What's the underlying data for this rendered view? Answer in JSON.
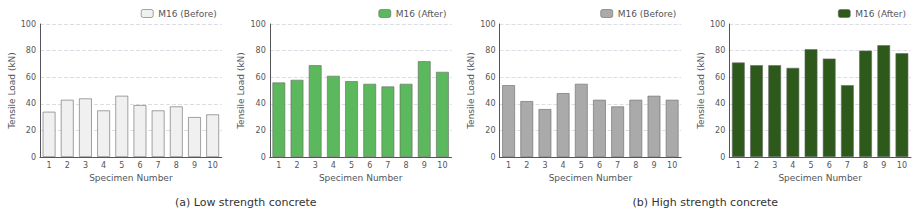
{
  "chart_data": [
    {
      "type": "bar",
      "subtitle": "(a) Low strength concrete",
      "categories": [
        "1",
        "2",
        "3",
        "4",
        "5",
        "6",
        "7",
        "8",
        "9",
        "10"
      ],
      "series": [
        {
          "name": "M16 (Before)",
          "color": "#f0f0f0",
          "values": [
            34,
            43,
            44,
            35,
            46,
            39,
            35,
            38,
            30,
            32
          ]
        }
      ],
      "xlabel": "Specimen Number",
      "ylabel": "Tensile Load (kN)",
      "ylim": [
        0,
        100
      ],
      "yticks": [
        0,
        20,
        40,
        60,
        80,
        100
      ],
      "grid": true,
      "legend": "upper right"
    },
    {
      "type": "bar",
      "categories": [
        "1",
        "2",
        "3",
        "4",
        "5",
        "6",
        "7",
        "8",
        "9",
        "10"
      ],
      "series": [
        {
          "name": "M16 (After)",
          "color": "#5cb85c",
          "values": [
            56,
            58,
            69,
            61,
            57,
            55,
            53,
            55,
            72,
            64
          ]
        }
      ],
      "xlabel": "Specimen Number",
      "ylabel": "Tensile Load (kN)",
      "ylim": [
        0,
        100
      ],
      "yticks": [
        0,
        20,
        40,
        60,
        80,
        100
      ],
      "grid": true,
      "legend": "upper right"
    },
    {
      "type": "bar",
      "subtitle": "(b) High strength concrete",
      "categories": [
        "1",
        "2",
        "3",
        "4",
        "5",
        "6",
        "7",
        "8",
        "9",
        "10"
      ],
      "series": [
        {
          "name": "M16 (Before)",
          "color": "#aaaaaa",
          "values": [
            54,
            42,
            36,
            48,
            55,
            43,
            38,
            43,
            46,
            43
          ]
        }
      ],
      "xlabel": "Specimen Number",
      "ylabel": "Tensile Load (kN)",
      "ylim": [
        0,
        100
      ],
      "yticks": [
        0,
        20,
        40,
        60,
        80,
        100
      ],
      "grid": true,
      "legend": "upper right"
    },
    {
      "type": "bar",
      "categories": [
        "1",
        "2",
        "3",
        "4",
        "5",
        "6",
        "7",
        "8",
        "9",
        "10"
      ],
      "series": [
        {
          "name": "M16 (After)",
          "color": "#2d5a1b",
          "values": [
            71,
            69,
            69,
            67,
            81,
            74,
            54,
            80,
            84,
            78
          ]
        }
      ],
      "xlabel": "Specimen Number",
      "ylabel": "Tensile Load (kN)",
      "ylim": [
        0,
        100
      ],
      "yticks": [
        0,
        20,
        40,
        60,
        80,
        100
      ],
      "grid": true,
      "legend": "upper right"
    }
  ]
}
